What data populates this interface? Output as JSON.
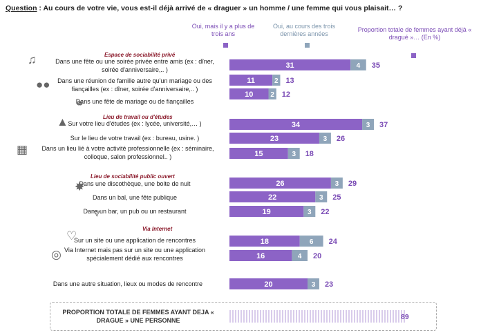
{
  "question": {
    "prefix": "Question",
    "text": " : Au cours de votre vie, vous est-il déjà arrivé de « draguer » un homme / une femme qui vous plaisait… ?"
  },
  "legend": {
    "purple": "Oui, mais  il y a plus de trois ans",
    "gray": "Oui, au cours des trois dernières années",
    "total": "Proportion totale de femmes ayant déjà « dragué »… (En %)"
  },
  "colors": {
    "purple": "#8c63c6",
    "gray": "#8fa5ba",
    "total_text": "#7a4bb5",
    "section": "#8b1a2b"
  },
  "sections": [
    {
      "label": "Espace de sociabilité privé"
    },
    {
      "label": "Lieu de travail ou d'études"
    },
    {
      "label": "Lieu de sociabilité public ouvert"
    },
    {
      "label": "Via Internet"
    }
  ],
  "total_row": {
    "label": "PROPORTION TOTALE DE FEMMES AYANT DEJA « DRAGUE » UNE PERSONNE",
    "value": 89
  },
  "chart_data": {
    "type": "bar",
    "orientation": "horizontal",
    "stacked": true,
    "categories": [
      "Dans une fête ou une soirée privée entre amis (ex : dîner, soirée d'anniversaire,.. )",
      "Dans une réunion de famille autre qu'un mariage ou des fiançailles (ex : dîner, soirée d'anniversaire,.. )",
      "Dans une fête de mariage ou de fiançailles",
      "Sur votre lieu d'études (ex : lycée, université,… )",
      "Sur le lieu de votre travail (ex : bureau, usine. )",
      "Dans un lieu lié à votre activité professionnelle (ex : séminaire, colloque,  salon professionnel.. )",
      "Dans une discothèque, une boite de nuit",
      "Dans un bal, une fête publique",
      "Dans un bar, un pub ou un restaurant",
      "Sur un site ou une application de rencontres",
      "Via Internet mais pas sur un site ou une application spécialement dédié aux rencontres",
      "Dans une autre situation, lieux ou modes de rencontre"
    ],
    "series": [
      {
        "name": "Oui, mais  il y a plus de trois ans",
        "values": [
          31,
          11,
          10,
          34,
          23,
          15,
          26,
          22,
          19,
          18,
          16,
          20
        ]
      },
      {
        "name": "Oui, au cours des trois dernières années",
        "values": [
          4,
          2,
          2,
          3,
          3,
          3,
          3,
          3,
          3,
          6,
          4,
          3
        ]
      }
    ],
    "totals": [
      35,
      13,
      12,
      37,
      26,
      18,
      29,
      25,
      22,
      24,
      20,
      23
    ],
    "xlim": [
      0,
      89
    ]
  }
}
